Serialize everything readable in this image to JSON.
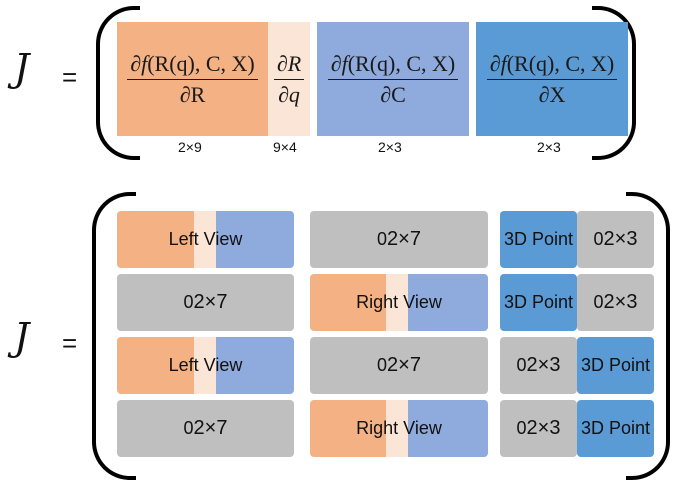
{
  "top": {
    "symbol": "J",
    "equals": "=",
    "blocks": [
      {
        "num_pre": "∂",
        "num_f": "f",
        "num_rest": "(R(q), C, X)",
        "den": "∂R",
        "dim": "2×9",
        "color": "#f4b183"
      },
      {
        "num": "∂R",
        "den": "∂q",
        "dim": "9×4",
        "color": "#fbe5d6"
      },
      {
        "num_pre": "∂",
        "num_f": "f",
        "num_rest": "(R(q), C, X)",
        "den": "∂C",
        "dim": "2×3",
        "color": "#8faadc"
      },
      {
        "num_pre": "∂",
        "num_f": "f",
        "num_rest": "(R(q), C, X)",
        "den": "∂X",
        "dim": "2×3",
        "color": "#5b9bd5"
      }
    ]
  },
  "bottom": {
    "symbol": "J",
    "equals": "=",
    "labels": {
      "left_view": "Left View",
      "right_view": "Right View",
      "point": "3D Point",
      "zero": "0",
      "zero_sub_27": "2×7",
      "zero_sub_23": "2×3"
    },
    "rows": [
      [
        "Left View",
        "0 2×7",
        "3D Point | 0 2×3"
      ],
      [
        "0 2×7",
        "Right View",
        "3D Point | 0 2×3"
      ],
      [
        "Left View",
        "0 2×7",
        "0 2×3 | 3D Point"
      ],
      [
        "0 2×7",
        "Right View",
        "0 2×3 | 3D Point"
      ]
    ]
  }
}
